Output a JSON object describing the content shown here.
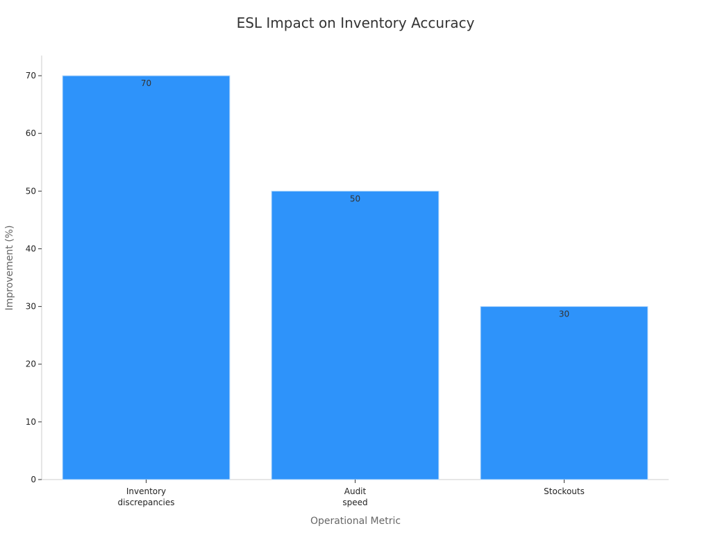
{
  "chart_data": {
    "type": "bar",
    "title": "ESL Impact on Inventory Accuracy",
    "xlabel": "Operational Metric",
    "ylabel": "Improvement (%)",
    "categories": [
      [
        "Inventory",
        "discrepancies"
      ],
      [
        "Audit",
        "speed"
      ],
      [
        "Stockouts"
      ]
    ],
    "values": [
      70,
      50,
      30
    ],
    "data_labels": [
      "70",
      "50",
      "30"
    ],
    "ylim": [
      0,
      73.5
    ],
    "yticks": [
      0,
      10,
      20,
      30,
      40,
      50,
      60,
      70
    ],
    "bar_color": "#2e93fa",
    "grid": false,
    "legend": "none"
  }
}
